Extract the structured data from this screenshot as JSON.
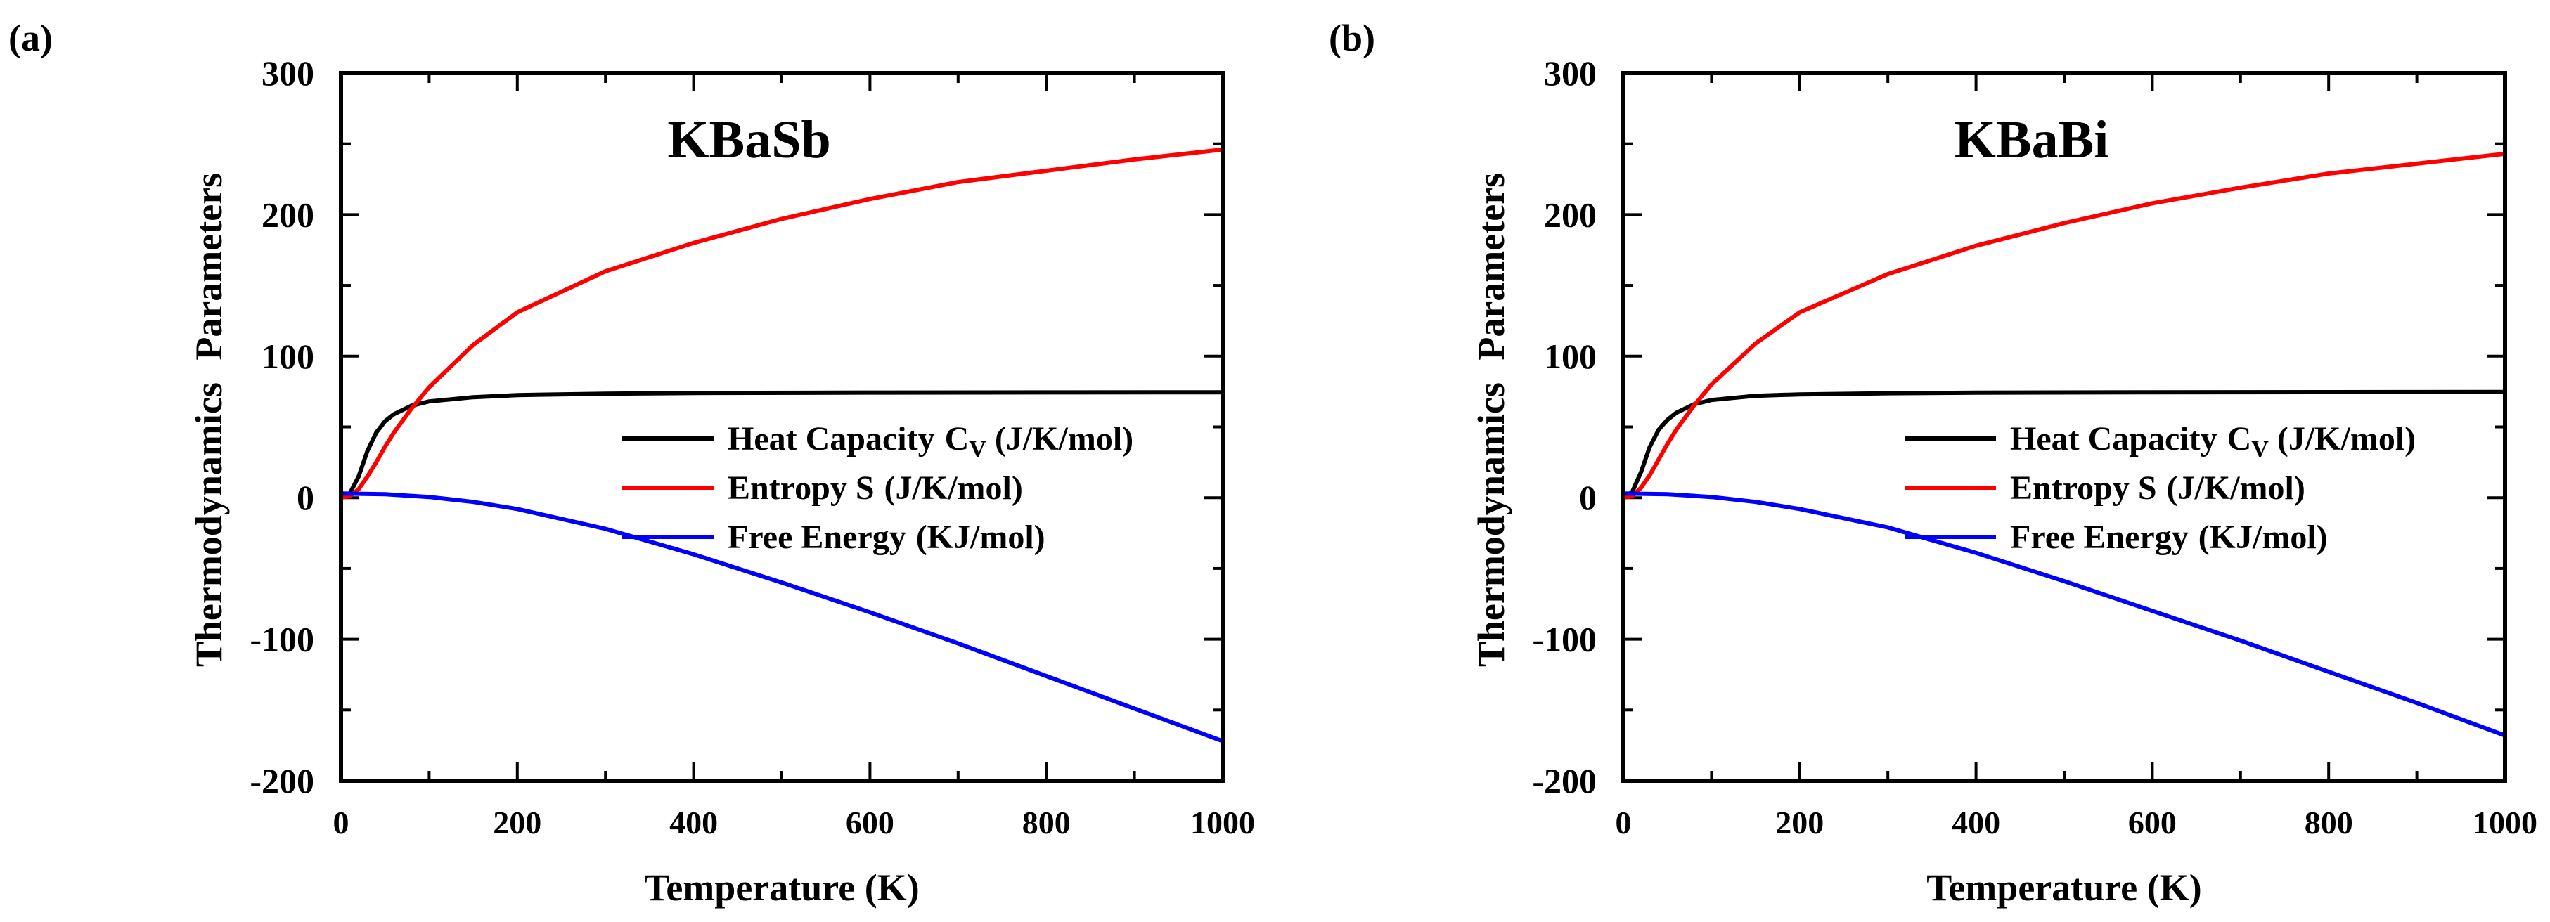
{
  "chart_data": [
    {
      "panel_label": "(a)",
      "type": "line",
      "title": "KBaSb",
      "xlabel": "Temperature (K)",
      "ylabel": "Thermodynamics Parameters",
      "xlim": [
        0,
        1000
      ],
      "ylim": [
        -200,
        300
      ],
      "xticks": [
        0,
        200,
        400,
        600,
        800,
        1000
      ],
      "xtick_labels": [
        "0",
        "200",
        "400",
        "600",
        "800",
        "1000"
      ],
      "yticks": [
        -200,
        -100,
        0,
        100,
        200,
        300
      ],
      "ytick_labels": [
        "-200",
        "-100",
        "0",
        "100",
        "200",
        "300"
      ],
      "legend_position": "center-right",
      "series": [
        {
          "name": "Heat Capacity",
          "sym": "C",
          "sub": "V",
          "unit": "(J/K/mol)",
          "color": "#000000",
          "x": [
            0,
            10,
            20,
            30,
            40,
            50,
            60,
            80,
            100,
            150,
            200,
            300,
            400,
            600,
            800,
            1000
          ],
          "values": [
            0,
            3,
            15,
            33,
            46,
            54,
            59,
            65,
            68,
            71,
            72.5,
            73.5,
            74,
            74.3,
            74.4,
            74.5
          ]
        },
        {
          "name": "Entropy S",
          "sym": "",
          "sub": "",
          "unit": "(J/K/mol)",
          "color": "#ff0000",
          "x": [
            0,
            10,
            20,
            30,
            40,
            50,
            60,
            80,
            100,
            150,
            200,
            300,
            400,
            500,
            600,
            700,
            800,
            900,
            1000
          ],
          "values": [
            0,
            1,
            6,
            15,
            25,
            36,
            46,
            63,
            78,
            108,
            131,
            160,
            180,
            197,
            211,
            223,
            231,
            239,
            246
          ]
        },
        {
          "name": "Free Energy",
          "sym": "",
          "sub": "",
          "unit": "(KJ/mol)",
          "color": "#0000ff",
          "x": [
            0,
            50,
            100,
            150,
            200,
            300,
            400,
            500,
            600,
            700,
            800,
            900,
            1000
          ],
          "values": [
            3,
            2.5,
            0.5,
            -3,
            -8,
            -22,
            -40,
            -60,
            -81,
            -103,
            -126,
            -149,
            -172
          ]
        }
      ]
    },
    {
      "panel_label": "(b)",
      "type": "line",
      "title": "KBaBi",
      "xlabel": "Temperature (K)",
      "ylabel": "Thermodynamics Parameters",
      "xlim": [
        0,
        1000
      ],
      "ylim": [
        -200,
        300
      ],
      "xticks": [
        0,
        200,
        400,
        600,
        800,
        1000
      ],
      "xtick_labels": [
        "0",
        "200",
        "400",
        "600",
        "800",
        "1000"
      ],
      "yticks": [
        -200,
        -100,
        0,
        100,
        200,
        300
      ],
      "ytick_labels": [
        "-200",
        "-100",
        "0",
        "100",
        "200",
        "300"
      ],
      "legend_position": "center-right",
      "series": [
        {
          "name": "Heat Capacity",
          "sym": "C",
          "sub": "V",
          "unit": "(J/K/mol)",
          "color": "#000000",
          "x": [
            0,
            10,
            20,
            30,
            40,
            50,
            60,
            80,
            100,
            150,
            200,
            300,
            400,
            600,
            800,
            1000
          ],
          "values": [
            0,
            4,
            18,
            36,
            48,
            55,
            60,
            66,
            69,
            72,
            73,
            73.8,
            74.2,
            74.5,
            74.6,
            74.7
          ]
        },
        {
          "name": "Entropy S",
          "sym": "",
          "sub": "",
          "unit": "(J/K/mol)",
          "color": "#ff0000",
          "x": [
            0,
            10,
            20,
            30,
            40,
            50,
            60,
            80,
            100,
            150,
            200,
            300,
            400,
            500,
            600,
            700,
            800,
            900,
            1000
          ],
          "values": [
            0,
            1,
            7,
            16,
            27,
            38,
            48,
            65,
            80,
            109,
            131,
            158,
            178,
            194,
            208,
            219,
            229,
            236,
            243
          ]
        },
        {
          "name": "Free Energy",
          "sym": "",
          "sub": "",
          "unit": "(KJ/mol)",
          "color": "#0000ff",
          "x": [
            0,
            50,
            100,
            150,
            200,
            300,
            400,
            500,
            600,
            700,
            800,
            900,
            1000
          ],
          "values": [
            3,
            2.5,
            0.5,
            -3,
            -8,
            -21,
            -39,
            -59,
            -80,
            -101,
            -123,
            -145,
            -168
          ]
        }
      ]
    }
  ]
}
